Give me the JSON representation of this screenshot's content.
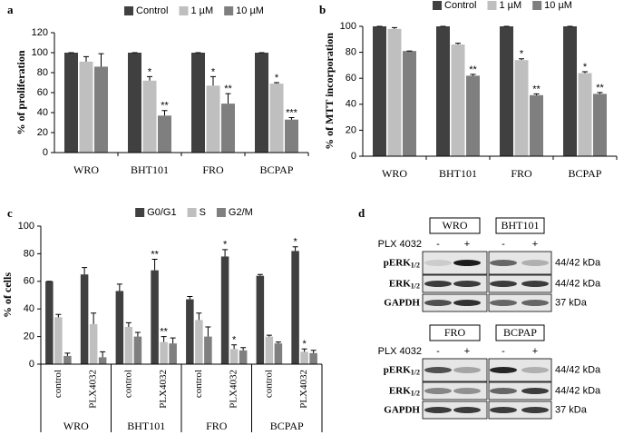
{
  "chart_data": [
    {
      "type": "bar",
      "panel_label": "a",
      "ylabel": "% of proliferation",
      "categories": [
        "WRO",
        "BHT101",
        "FRO",
        "BCPAP"
      ],
      "series": [
        {
          "name": "Control",
          "color": "#404040",
          "values": [
            100,
            100,
            100,
            100
          ],
          "errors": [
            0,
            0,
            0,
            0
          ],
          "annotations": [
            null,
            null,
            null,
            null
          ]
        },
        {
          "name": "1 µM",
          "color": "#bfbfbf",
          "values": [
            91,
            72,
            67,
            69
          ],
          "errors": [
            5,
            4,
            9,
            1
          ],
          "annotations": [
            null,
            "*",
            "*",
            "*"
          ]
        },
        {
          "name": "10 µM",
          "color": "#7f7f7f",
          "values": [
            86,
            37,
            49,
            33
          ],
          "errors": [
            13,
            5,
            10,
            2
          ],
          "annotations": [
            null,
            "**",
            "**",
            "***"
          ]
        }
      ],
      "ylim": [
        0,
        120
      ],
      "yticks": [
        0,
        20,
        40,
        60,
        80,
        100,
        120
      ],
      "legend": "top"
    },
    {
      "type": "bar",
      "panel_label": "b",
      "ylabel": "% of MTT incorporation",
      "categories": [
        "WRO",
        "BHT101",
        "FRO",
        "BCPAP"
      ],
      "series": [
        {
          "name": "Control",
          "color": "#404040",
          "values": [
            100,
            100,
            100,
            100
          ],
          "errors": [
            0,
            0,
            0,
            0
          ],
          "annotations": [
            null,
            null,
            null,
            null
          ]
        },
        {
          "name": "1 µM",
          "color": "#bfbfbf",
          "values": [
            98,
            86,
            74,
            64
          ],
          "errors": [
            1,
            1,
            1,
            1
          ],
          "annotations": [
            null,
            null,
            "*",
            "*"
          ]
        },
        {
          "name": "10 µM",
          "color": "#7f7f7f",
          "values": [
            81,
            62,
            47,
            48
          ],
          "errors": [
            0,
            1,
            1,
            1
          ],
          "annotations": [
            null,
            "**",
            "**",
            "**"
          ]
        }
      ],
      "ylim": [
        0,
        100
      ],
      "yticks": [
        0,
        20,
        40,
        60,
        80,
        100
      ],
      "legend": "top"
    },
    {
      "type": "bar",
      "panel_label": "c",
      "ylabel": "% of cells",
      "categories": [
        "control",
        "PLX4032",
        "control",
        "PLX4032",
        "control",
        "PLX4032",
        "control",
        "PLX4032"
      ],
      "group_labels": [
        "WRO",
        "BHT101",
        "FRO",
        "BCPAP"
      ],
      "series": [
        {
          "name": "G0/G1",
          "color": "#404040",
          "values": [
            60,
            65,
            53,
            68,
            47,
            78,
            64,
            82
          ],
          "errors": [
            0,
            5,
            5,
            8,
            2,
            5,
            1,
            3
          ],
          "annotations": [
            null,
            null,
            null,
            "**",
            null,
            "*",
            null,
            "*"
          ]
        },
        {
          "name": "S",
          "color": "#bfbfbf",
          "values": [
            34,
            29,
            27,
            16,
            32,
            11,
            20,
            9
          ],
          "errors": [
            2,
            8,
            3,
            4,
            5,
            3,
            1,
            2
          ],
          "annotations": [
            null,
            null,
            null,
            "**",
            null,
            "*",
            null,
            "*"
          ]
        },
        {
          "name": "G2/M",
          "color": "#7f7f7f",
          "values": [
            6,
            5,
            20,
            15,
            20,
            10,
            15,
            8
          ],
          "errors": [
            2,
            4,
            3,
            4,
            7,
            2,
            1,
            2
          ],
          "annotations": [
            null,
            null,
            null,
            null,
            null,
            null,
            null,
            null
          ]
        }
      ],
      "ylim": [
        0,
        100
      ],
      "yticks": [
        0,
        20,
        40,
        60,
        80,
        100
      ],
      "legend": "top"
    }
  ],
  "blot": {
    "panel_label": "d",
    "panels": [
      {
        "cell_lines": [
          "WRO",
          "BHT101"
        ],
        "treatment": "PLX 4032",
        "lanes": [
          "-",
          "+",
          "-",
          "+"
        ],
        "rows": [
          {
            "name": "pERK",
            "subscript": "1/2",
            "size": "44/42 kDa"
          },
          {
            "name": "ERK",
            "subscript": "1/2",
            "size": "44/42 kDa"
          },
          {
            "name": "GAPDH",
            "size": "37 kDa"
          }
        ]
      },
      {
        "cell_lines": [
          "FRO",
          "BCPAP"
        ],
        "treatment": "PLX 4032",
        "lanes": [
          "-",
          "+",
          "-",
          "+"
        ],
        "rows": [
          {
            "name": "pERK",
            "subscript": "1/2",
            "size": "44/42 kDa"
          },
          {
            "name": "ERK",
            "subscript": "1/2",
            "size": "44/42 kDa"
          },
          {
            "name": "GAPDH",
            "size": "37 kDa"
          }
        ]
      }
    ]
  }
}
